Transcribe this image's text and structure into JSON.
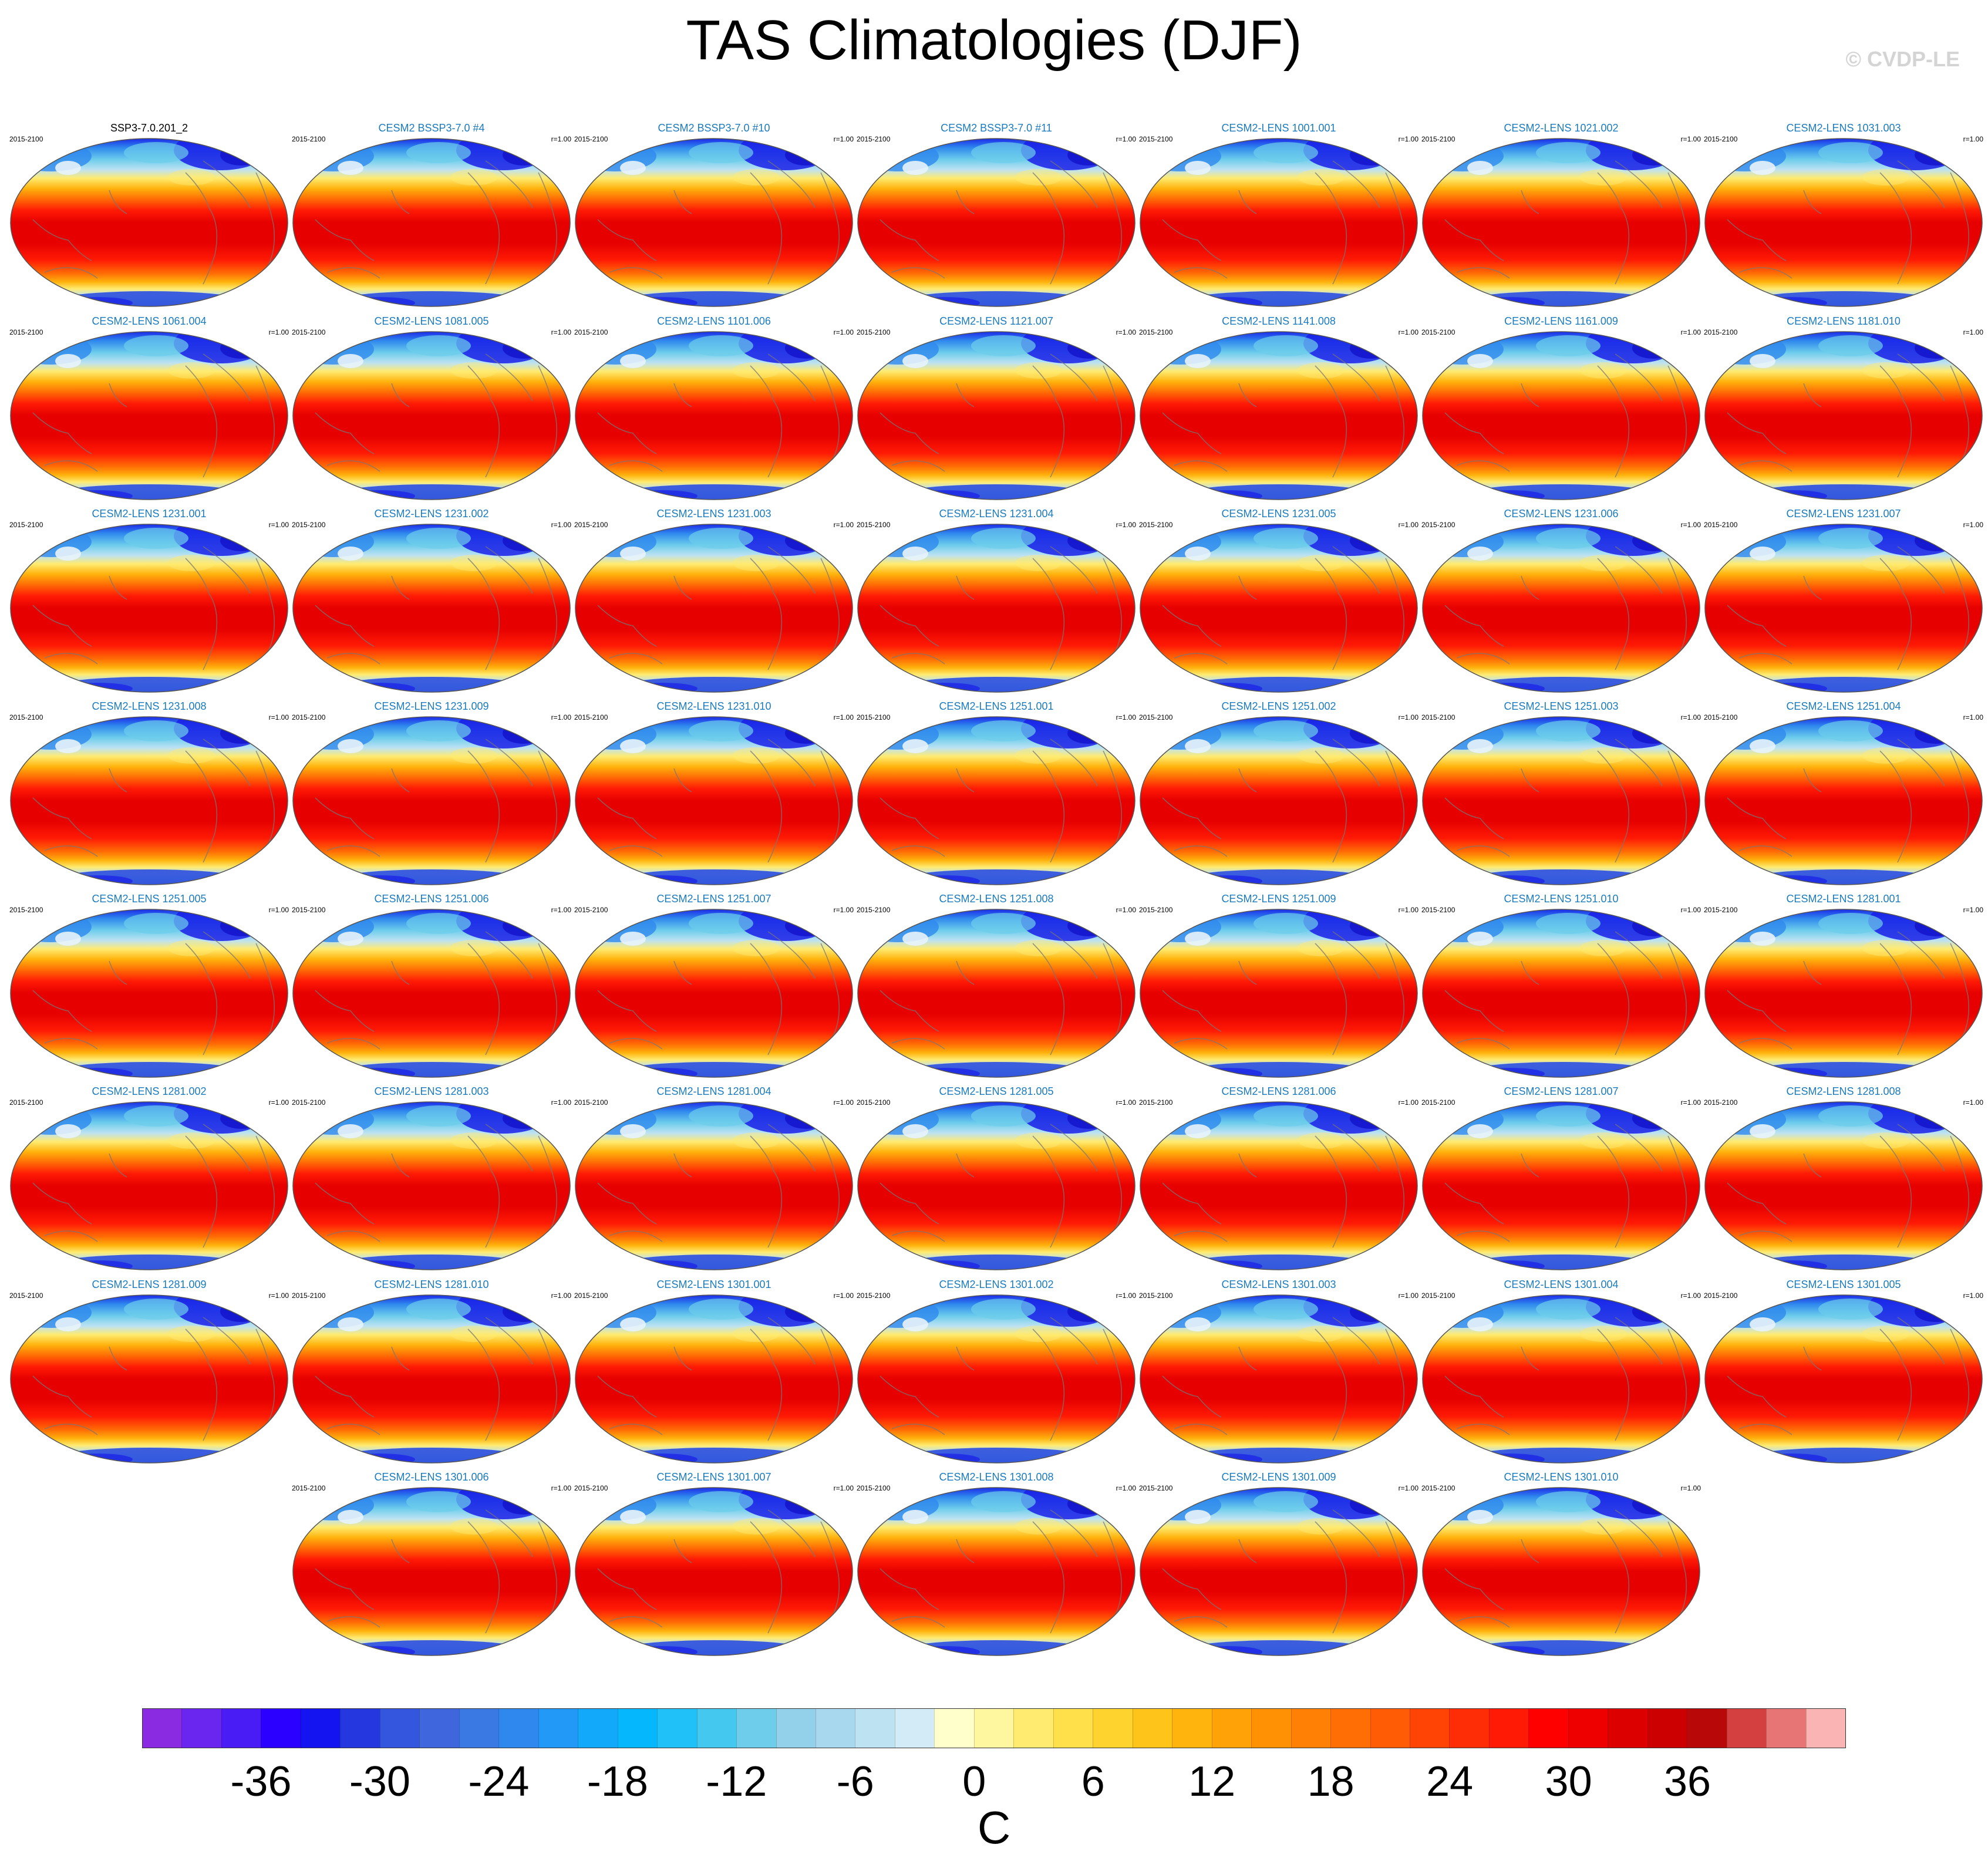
{
  "title": "TAS Climatologies (DJF)",
  "copyright": "© CVDP-LE",
  "panels": [
    {
      "label": "SSP3-7.0.201_2",
      "years": "2015-2100",
      "r": ""
    },
    {
      "label": "CESM2 BSSP3-7.0 #4",
      "years": "2015-2100",
      "r": "r=1.00"
    },
    {
      "label": "CESM2 BSSP3-7.0 #10",
      "years": "2015-2100",
      "r": "r=1.00"
    },
    {
      "label": "CESM2 BSSP3-7.0 #11",
      "years": "2015-2100",
      "r": "r=1.00"
    },
    {
      "label": "CESM2-LENS 1001.001",
      "years": "2015-2100",
      "r": "r=1.00"
    },
    {
      "label": "CESM2-LENS 1021.002",
      "years": "2015-2100",
      "r": "r=1.00"
    },
    {
      "label": "CESM2-LENS 1031.003",
      "years": "2015-2100",
      "r": "r=1.00"
    },
    {
      "label": "CESM2-LENS 1061.004",
      "years": "2015-2100",
      "r": "r=1.00"
    },
    {
      "label": "CESM2-LENS 1081.005",
      "years": "2015-2100",
      "r": "r=1.00"
    },
    {
      "label": "CESM2-LENS 1101.006",
      "years": "2015-2100",
      "r": "r=1.00"
    },
    {
      "label": "CESM2-LENS 1121.007",
      "years": "2015-2100",
      "r": "r=1.00"
    },
    {
      "label": "CESM2-LENS 1141.008",
      "years": "2015-2100",
      "r": "r=1.00"
    },
    {
      "label": "CESM2-LENS 1161.009",
      "years": "2015-2100",
      "r": "r=1.00"
    },
    {
      "label": "CESM2-LENS 1181.010",
      "years": "2015-2100",
      "r": "r=1.00"
    },
    {
      "label": "CESM2-LENS 1231.001",
      "years": "2015-2100",
      "r": "r=1.00"
    },
    {
      "label": "CESM2-LENS 1231.002",
      "years": "2015-2100",
      "r": "r=1.00"
    },
    {
      "label": "CESM2-LENS 1231.003",
      "years": "2015-2100",
      "r": "r=1.00"
    },
    {
      "label": "CESM2-LENS 1231.004",
      "years": "2015-2100",
      "r": "r=1.00"
    },
    {
      "label": "CESM2-LENS 1231.005",
      "years": "2015-2100",
      "r": "r=1.00"
    },
    {
      "label": "CESM2-LENS 1231.006",
      "years": "2015-2100",
      "r": "r=1.00"
    },
    {
      "label": "CESM2-LENS 1231.007",
      "years": "2015-2100",
      "r": "r=1.00"
    },
    {
      "label": "CESM2-LENS 1231.008",
      "years": "2015-2100",
      "r": "r=1.00"
    },
    {
      "label": "CESM2-LENS 1231.009",
      "years": "2015-2100",
      "r": "r=1.00"
    },
    {
      "label": "CESM2-LENS 1231.010",
      "years": "2015-2100",
      "r": "r=1.00"
    },
    {
      "label": "CESM2-LENS 1251.001",
      "years": "2015-2100",
      "r": "r=1.00"
    },
    {
      "label": "CESM2-LENS 1251.002",
      "years": "2015-2100",
      "r": "r=1.00"
    },
    {
      "label": "CESM2-LENS 1251.003",
      "years": "2015-2100",
      "r": "r=1.00"
    },
    {
      "label": "CESM2-LENS 1251.004",
      "years": "2015-2100",
      "r": "r=1.00"
    },
    {
      "label": "CESM2-LENS 1251.005",
      "years": "2015-2100",
      "r": "r=1.00"
    },
    {
      "label": "CESM2-LENS 1251.006",
      "years": "2015-2100",
      "r": "r=1.00"
    },
    {
      "label": "CESM2-LENS 1251.007",
      "years": "2015-2100",
      "r": "r=1.00"
    },
    {
      "label": "CESM2-LENS 1251.008",
      "years": "2015-2100",
      "r": "r=1.00"
    },
    {
      "label": "CESM2-LENS 1251.009",
      "years": "2015-2100",
      "r": "r=1.00"
    },
    {
      "label": "CESM2-LENS 1251.010",
      "years": "2015-2100",
      "r": "r=1.00"
    },
    {
      "label": "CESM2-LENS 1281.001",
      "years": "2015-2100",
      "r": "r=1.00"
    },
    {
      "label": "CESM2-LENS 1281.002",
      "years": "2015-2100",
      "r": "r=1.00"
    },
    {
      "label": "CESM2-LENS 1281.003",
      "years": "2015-2100",
      "r": "r=1.00"
    },
    {
      "label": "CESM2-LENS 1281.004",
      "years": "2015-2100",
      "r": "r=1.00"
    },
    {
      "label": "CESM2-LENS 1281.005",
      "years": "2015-2100",
      "r": "r=1.00"
    },
    {
      "label": "CESM2-LENS 1281.006",
      "years": "2015-2100",
      "r": "r=1.00"
    },
    {
      "label": "CESM2-LENS 1281.007",
      "years": "2015-2100",
      "r": "r=1.00"
    },
    {
      "label": "CESM2-LENS 1281.008",
      "years": "2015-2100",
      "r": "r=1.00"
    },
    {
      "label": "CESM2-LENS 1281.009",
      "years": "2015-2100",
      "r": "r=1.00"
    },
    {
      "label": "CESM2-LENS 1281.010",
      "years": "2015-2100",
      "r": "r=1.00"
    },
    {
      "label": "CESM2-LENS 1301.001",
      "years": "2015-2100",
      "r": "r=1.00"
    },
    {
      "label": "CESM2-LENS 1301.002",
      "years": "2015-2100",
      "r": "r=1.00"
    },
    {
      "label": "CESM2-LENS 1301.003",
      "years": "2015-2100",
      "r": "r=1.00"
    },
    {
      "label": "CESM2-LENS 1301.004",
      "years": "2015-2100",
      "r": "r=1.00"
    },
    {
      "label": "CESM2-LENS 1301.005",
      "years": "2015-2100",
      "r": "r=1.00"
    },
    {
      "label": "CESM2-LENS 1301.006",
      "years": "2015-2100",
      "r": "r=1.00"
    },
    {
      "label": "CESM2-LENS 1301.007",
      "years": "2015-2100",
      "r": "r=1.00"
    },
    {
      "label": "CESM2-LENS 1301.008",
      "years": "2015-2100",
      "r": "r=1.00"
    },
    {
      "label": "CESM2-LENS 1301.009",
      "years": "2015-2100",
      "r": "r=1.00"
    },
    {
      "label": "CESM2-LENS 1301.010",
      "years": "2015-2100",
      "r": "r=1.00"
    }
  ],
  "colorbar": {
    "units": "C",
    "tick_labels": [
      "-36",
      "-30",
      "-24",
      "-18",
      "-12",
      "-6",
      "0",
      "6",
      "12",
      "18",
      "24",
      "30",
      "36"
    ],
    "colors": [
      "#8a2be2",
      "#6a25ee",
      "#4a1cf5",
      "#2b00ff",
      "#1414f0",
      "#2538e0",
      "#3455dd",
      "#3f66dc",
      "#3a78e4",
      "#2e88ee",
      "#2299f7",
      "#13a9fb",
      "#05b8fd",
      "#1fc1f8",
      "#45c8f0",
      "#6dcdeb",
      "#93d0ea",
      "#a8d8ee",
      "#bde2f2",
      "#d2ebf6",
      "#ffffcc",
      "#fff6a0",
      "#ffeb70",
      "#ffe04a",
      "#ffd32e",
      "#ffc41a",
      "#ffb30d",
      "#ffa207",
      "#ff9105",
      "#ff8005",
      "#ff6e05",
      "#ff5c05",
      "#ff4405",
      "#ff2d05",
      "#ff1a05",
      "#ff0000",
      "#ee0000",
      "#dd0000",
      "#cc0000",
      "#b80808",
      "#d44040",
      "#e87575",
      "#fbb4b4"
    ]
  },
  "map_colors": {
    "arctic_deep": "#1a1ee8",
    "arctic_mid": "#2e88ee",
    "cold": "#6dcdeb",
    "cool": "#bde2f2",
    "mild": "#ffeb70",
    "warm": "#ffb30d",
    "hot_orange": "#ff6e05",
    "hot": "#ff1a05",
    "tropics": "#e60000",
    "antarctic": "#3455dd",
    "coast": "#777777"
  }
}
